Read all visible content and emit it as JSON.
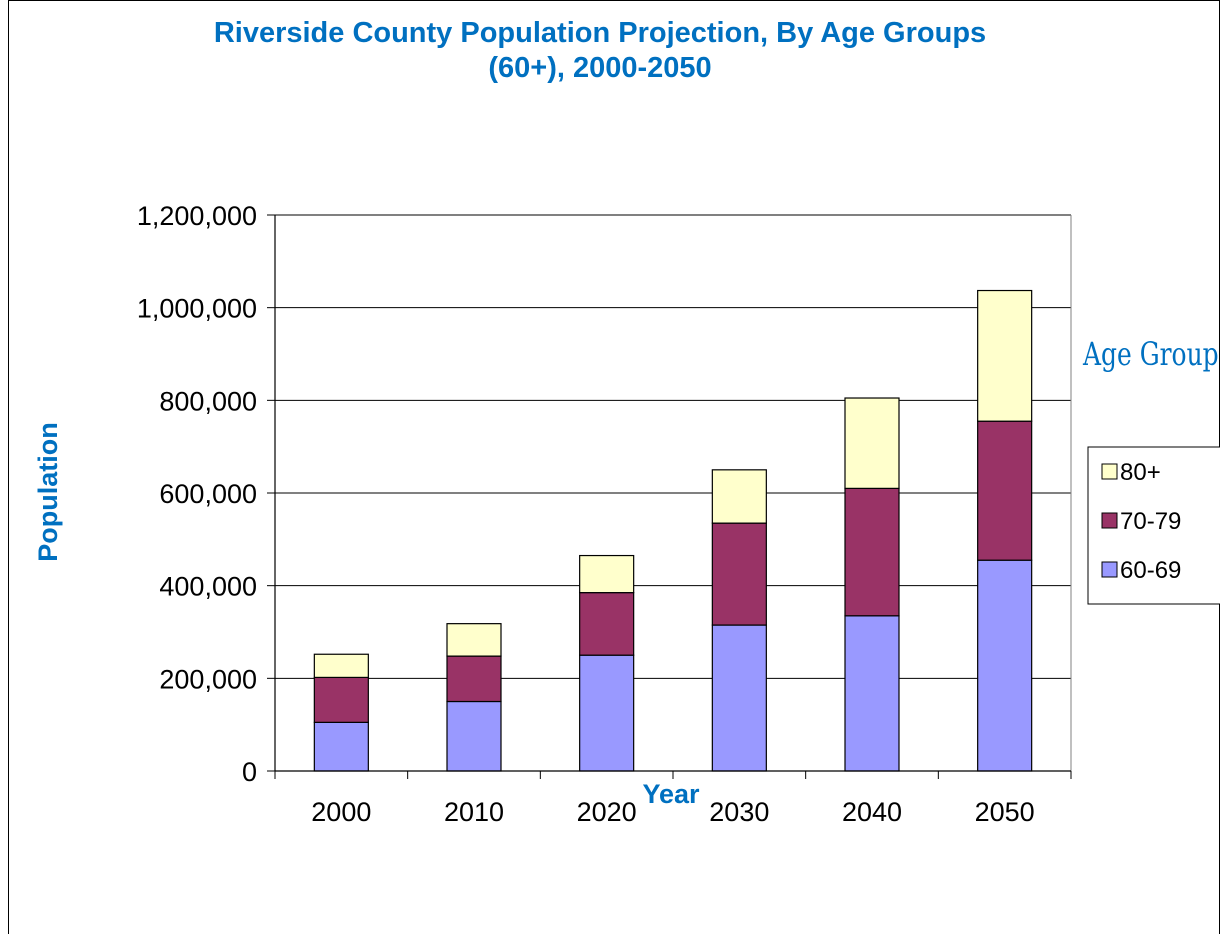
{
  "chart_data": {
    "type": "bar",
    "stacked": true,
    "title": "Riverside County Population Projection, By Age Groups (60+), 2000-2050",
    "xlabel": "Year",
    "ylabel": "Population",
    "ylim": [
      0,
      1200000
    ],
    "y_ticks": [
      "0",
      "200,000",
      "400,000",
      "600,000",
      "800,000",
      "1,000,000",
      "1,200,000"
    ],
    "grid": true,
    "legend_position": "right",
    "legend_title": "Age Group",
    "categories": [
      "2000",
      "2010",
      "2020",
      "2030",
      "2040",
      "2050"
    ],
    "series": [
      {
        "name": "60-69",
        "color": "#9999FF",
        "values": [
          105000,
          150000,
          250000,
          315000,
          335000,
          455000
        ]
      },
      {
        "name": "70-79",
        "color": "#993366",
        "values": [
          97000,
          98000,
          135000,
          220000,
          275000,
          300000
        ]
      },
      {
        "name": "80+",
        "color": "#FFFFCC",
        "values": [
          50000,
          70000,
          80000,
          115000,
          195000,
          282000
        ]
      }
    ]
  }
}
